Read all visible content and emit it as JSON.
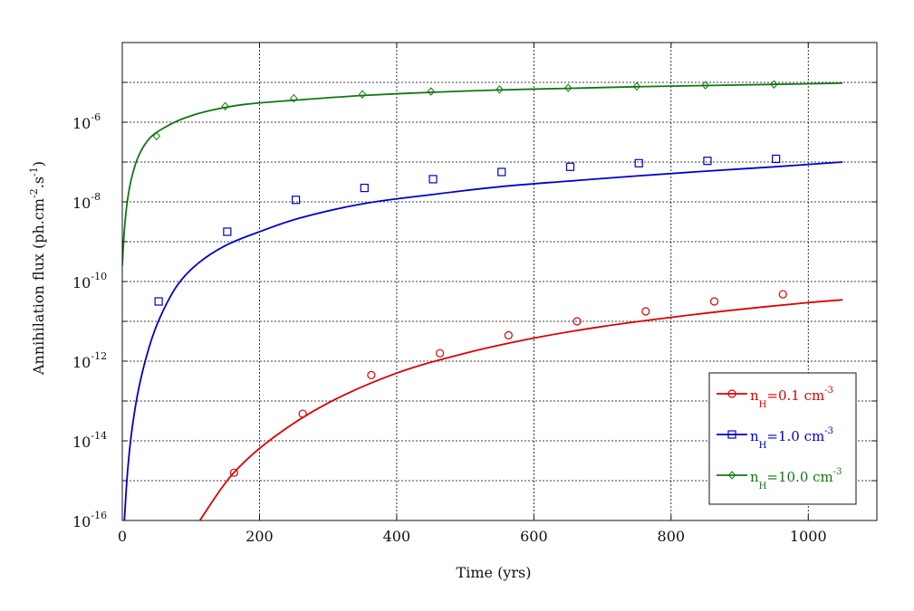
{
  "chart_data": {
    "type": "line",
    "title": "",
    "xlabel": "Time (yrs)",
    "ylabel": {
      "prefix": "Annihilation flux (ph.cm",
      "exp1": "-2",
      "middle": ".s",
      "exp2": "-1",
      "suffix": ")"
    },
    "x_scale": "linear",
    "y_scale": "log",
    "xlim": [
      0,
      1100
    ],
    "ylim_exp": [
      -16,
      -4
    ],
    "grid": true,
    "x_ticks": [
      0,
      200,
      400,
      600,
      800,
      1000
    ],
    "x_tick_labels": [
      "0",
      "200",
      "400",
      "600",
      "800",
      "1000"
    ],
    "y_tick_exps": [
      -16,
      -14,
      -12,
      -10,
      -8,
      -6
    ],
    "y_tick_labels": [
      {
        "base": "10",
        "exp": "-16"
      },
      {
        "base": "10",
        "exp": "-14"
      },
      {
        "base": "10",
        "exp": "-12"
      },
      {
        "base": "10",
        "exp": "-10"
      },
      {
        "base": "10",
        "exp": "-8"
      },
      {
        "base": "10",
        "exp": "-6"
      }
    ],
    "legend_position": "bottom-right",
    "series": [
      {
        "name": "n_H=0.1 cm^-3",
        "label": {
          "pre": "n",
          "sub": "H",
          "mid": "=0.1 cm",
          "exp": "-3"
        },
        "color": "#dd0000",
        "marker": "circle",
        "curve": {
          "x": [
            113,
            160,
            220,
            300,
            400,
            500,
            600,
            700,
            800,
            900,
            1000,
            1050
          ],
          "log10y": [
            -16.0,
            -14.85,
            -13.92,
            -13.05,
            -12.3,
            -11.8,
            -11.42,
            -11.13,
            -10.9,
            -10.7,
            -10.53,
            -10.46
          ]
        },
        "markers": {
          "x": [
            163,
            263,
            363,
            463,
            563,
            663,
            763,
            863,
            963
          ],
          "log10y": [
            -14.8,
            -13.32,
            -12.35,
            -11.8,
            -11.35,
            -11.0,
            -10.75,
            -10.5,
            -10.32
          ]
        }
      },
      {
        "name": "n_H=1.0 cm^-3",
        "label": {
          "pre": "n",
          "sub": "H",
          "mid": "=1.0 cm",
          "exp": "-3"
        },
        "color": "#0000cc",
        "marker": "square",
        "curve": {
          "x": [
            3,
            8,
            15,
            25,
            40,
            55,
            80,
            110,
            150,
            200,
            260,
            350,
            450,
            550,
            650,
            750,
            850,
            950,
            1050
          ],
          "log10y": [
            -16.0,
            -14.7,
            -13.6,
            -12.6,
            -11.6,
            -10.9,
            -10.1,
            -9.55,
            -9.1,
            -8.75,
            -8.4,
            -8.05,
            -7.82,
            -7.62,
            -7.48,
            -7.35,
            -7.23,
            -7.12,
            -7.0
          ]
        },
        "markers": {
          "x": [
            53,
            153,
            253,
            353,
            453,
            553,
            653,
            753,
            853,
            953
          ],
          "log10y": [
            -10.5,
            -8.75,
            -7.95,
            -7.65,
            -7.43,
            -7.25,
            -7.12,
            -7.03,
            -6.97,
            -6.92
          ]
        }
      },
      {
        "name": "n_H=10.0 cm^-3",
        "label": {
          "pre": "n",
          "sub": "H",
          "mid": "=10.0 cm",
          "exp": "-3"
        },
        "color": "#117711",
        "marker": "diamond",
        "curve": {
          "x": [
            0,
            3,
            8,
            15,
            25,
            40,
            60,
            90,
            130,
            180,
            250,
            350,
            450,
            550,
            650,
            750,
            850,
            950,
            1050
          ],
          "log10y": [
            -9.6,
            -8.7,
            -7.9,
            -7.3,
            -6.8,
            -6.4,
            -6.15,
            -5.9,
            -5.7,
            -5.55,
            -5.45,
            -5.33,
            -5.25,
            -5.19,
            -5.15,
            -5.11,
            -5.08,
            -5.05,
            -5.02
          ]
        },
        "markers": {
          "x": [
            50,
            150,
            250,
            350,
            450,
            550,
            650,
            750,
            850,
            950
          ],
          "log10y": [
            -6.35,
            -5.6,
            -5.4,
            -5.3,
            -5.23,
            -5.18,
            -5.14,
            -5.1,
            -5.07,
            -5.05
          ]
        }
      }
    ]
  }
}
